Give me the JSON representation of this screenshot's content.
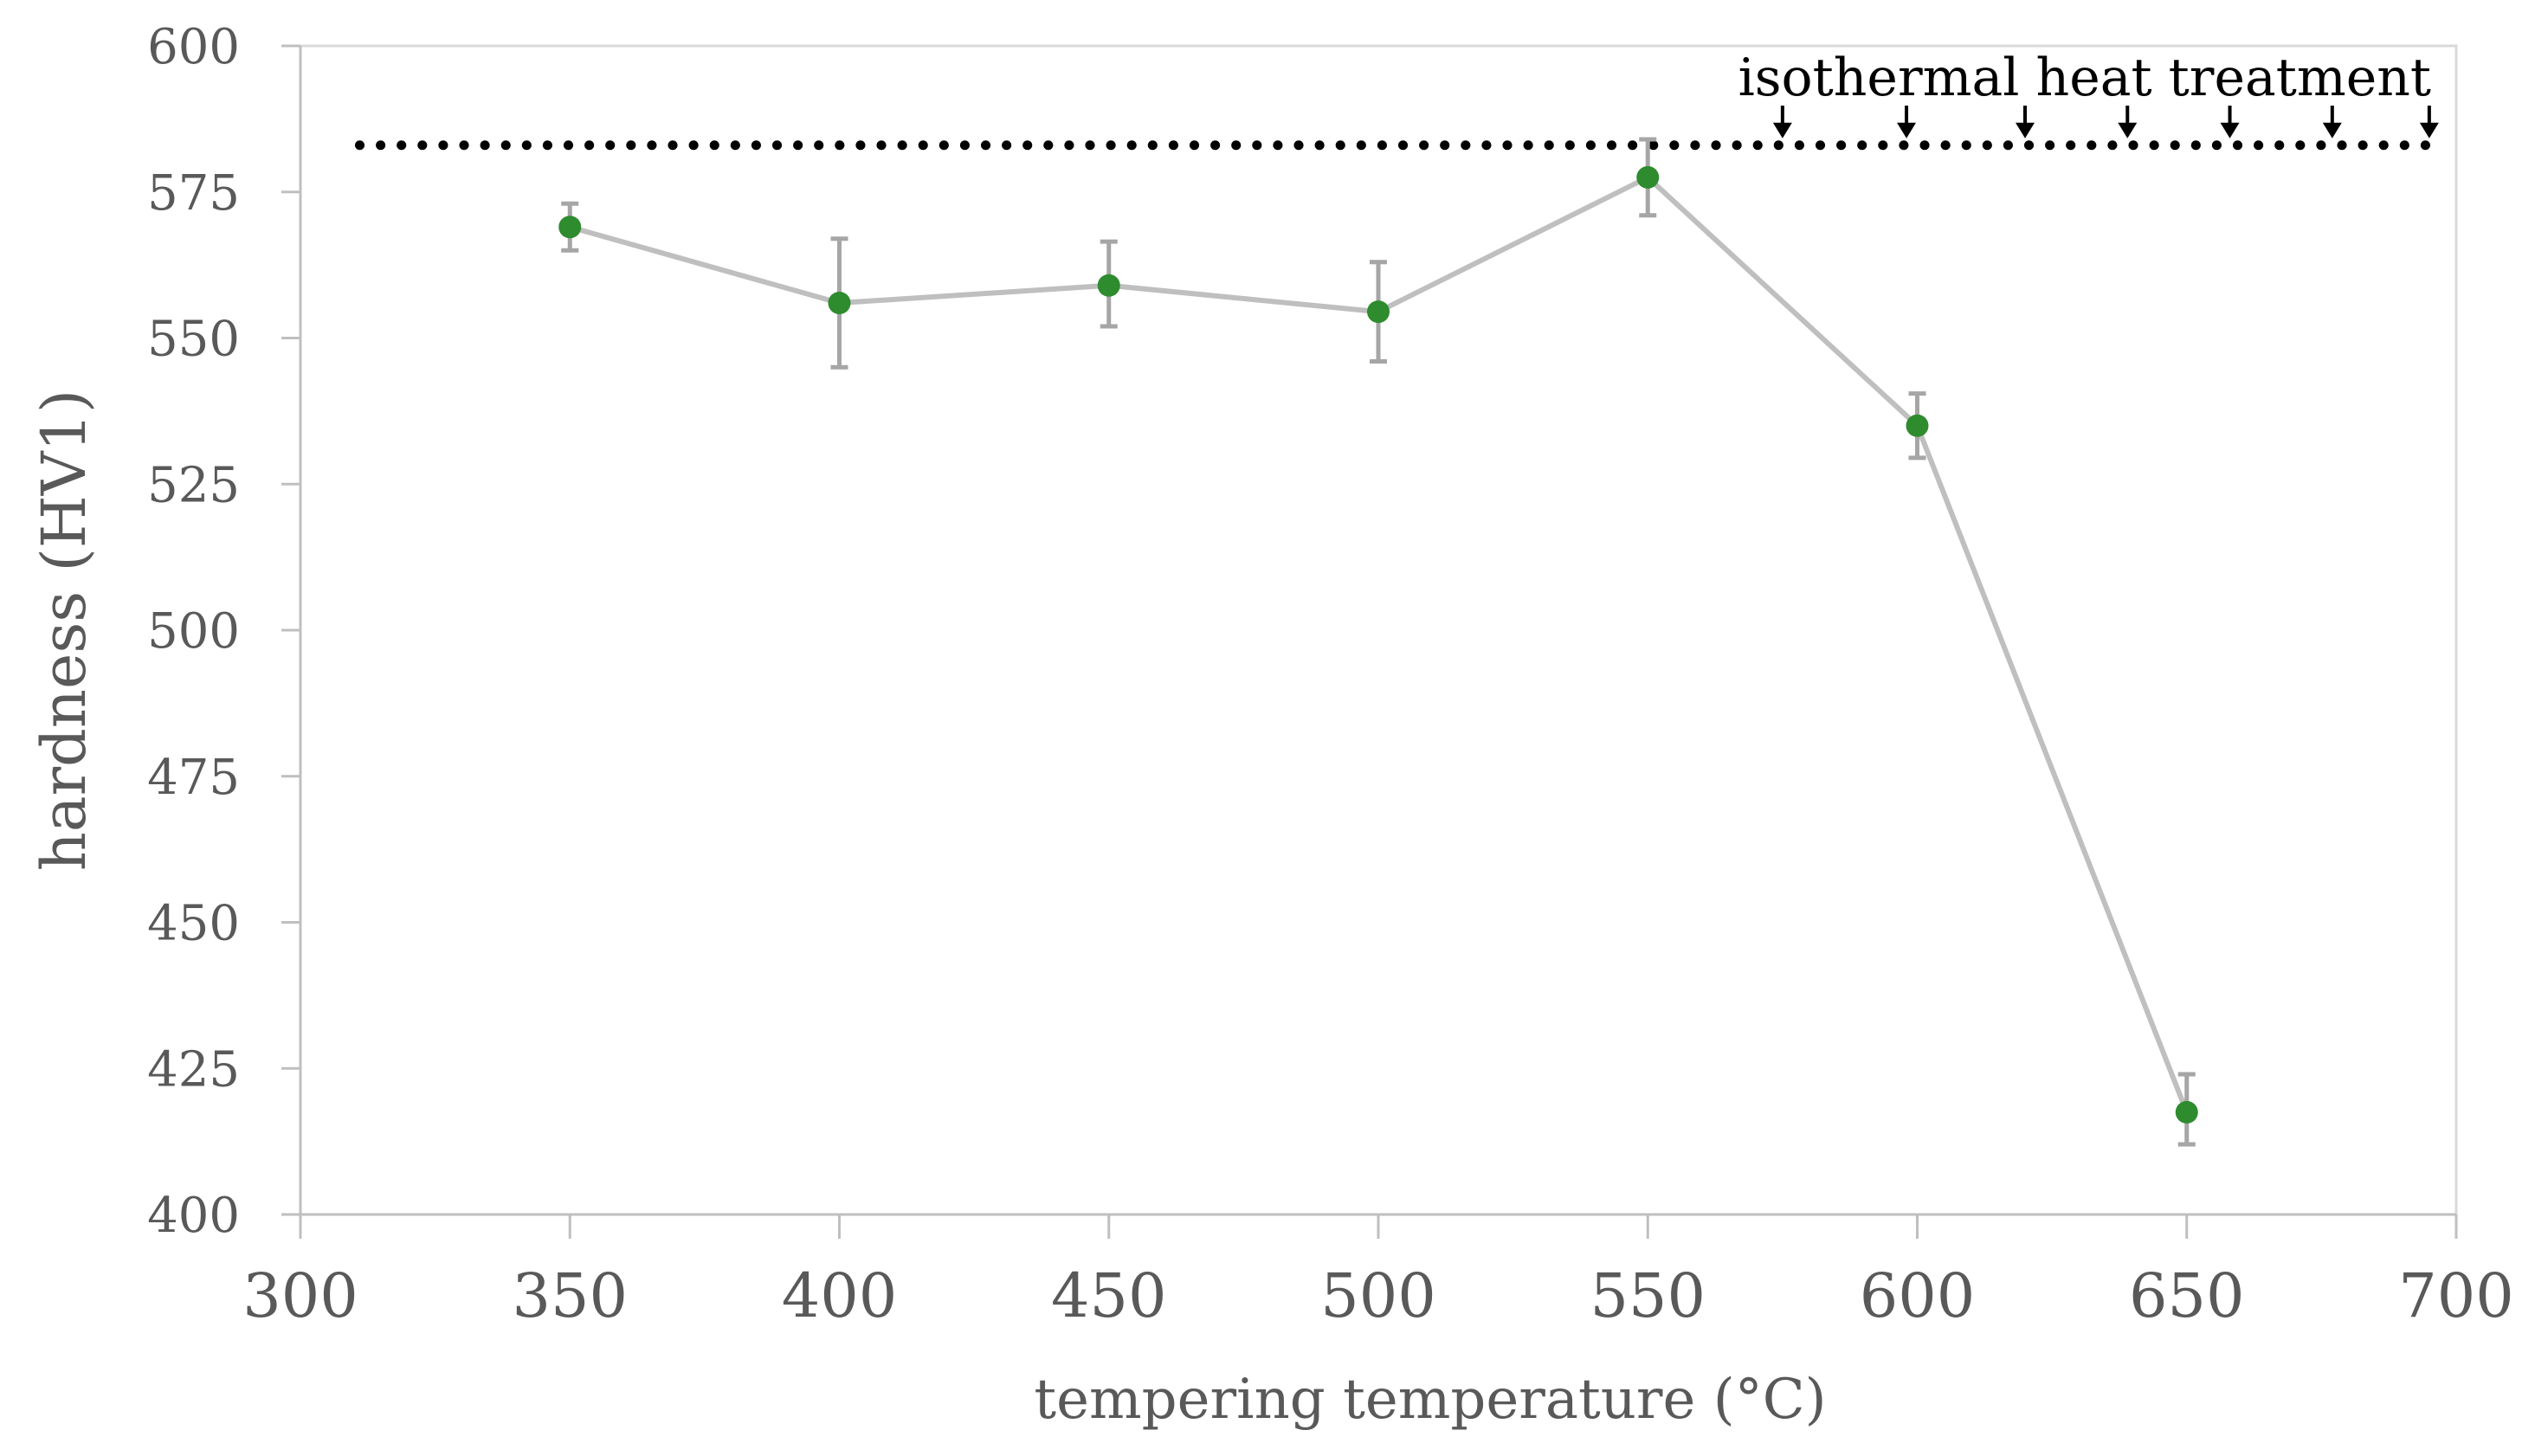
{
  "chart_data": {
    "type": "line",
    "title": "",
    "xlabel": "tempering temperature (°C)",
    "ylabel": "hardness (HV1)",
    "xlim": [
      300,
      700
    ],
    "ylim": [
      400,
      600
    ],
    "x_ticks": [
      300,
      350,
      400,
      450,
      500,
      550,
      600,
      650,
      700
    ],
    "y_ticks": [
      400,
      425,
      450,
      475,
      500,
      525,
      550,
      575,
      600
    ],
    "grid": false,
    "legend": "none",
    "series": [
      {
        "x": [
          350,
          400,
          450,
          500,
          550,
          600,
          650
        ],
        "y": [
          569,
          556,
          559,
          554.5,
          577.5,
          535,
          417.5
        ],
        "error_low": [
          565,
          545,
          552,
          546,
          571,
          529.5,
          412
        ],
        "error_high": [
          573,
          567,
          566.5,
          563,
          584,
          540.5,
          424
        ],
        "marker_color": "#2e8b2e",
        "line_color": "#bfbfbf",
        "error_color": "#a6a6a6"
      }
    ],
    "reference_line": {
      "y": 583,
      "x_range": [
        311,
        697
      ],
      "style": "dotted",
      "color": "#000000"
    },
    "annotation": {
      "text": "isothermal heat treatment",
      "arrow_x": [
        575,
        598,
        620,
        639,
        658,
        677,
        695
      ],
      "color": "#000000"
    }
  }
}
